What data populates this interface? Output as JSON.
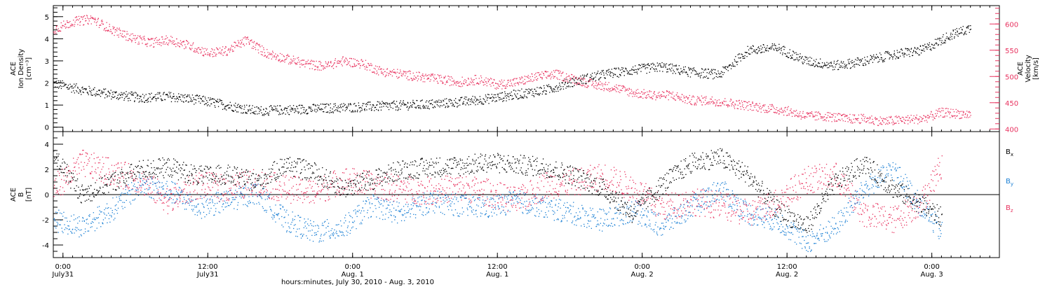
{
  "colors": {
    "density": "#000000",
    "velocity": "#e8325f",
    "bx": "#000000",
    "by": "#1a7fd4",
    "bz": "#e8325f",
    "axis": "#000000"
  },
  "chart_data": [
    {
      "type": "scatter",
      "panel": "top",
      "ylabel": [
        "ACE",
        "Ion Density",
        "[cm⁻³]"
      ],
      "ylim": [
        -0.2,
        5.5
      ],
      "yticks": [
        "0",
        "1",
        "2",
        "3",
        "4",
        "5"
      ],
      "y2label": [
        "ACE",
        "Velocity",
        "[km/s]"
      ],
      "y2lim": [
        395,
        635
      ],
      "y2ticks": [
        "400",
        "450",
        "500",
        "550",
        "600"
      ],
      "xlim_hours": [
        0,
        98
      ],
      "grid": false,
      "series": [
        {
          "key": "density",
          "axis": "left",
          "x": [
            0,
            3,
            6,
            9,
            12,
            15,
            18,
            21,
            24,
            27,
            30,
            33,
            36,
            39,
            42,
            45,
            48,
            51,
            54,
            57,
            60,
            63,
            66,
            69,
            72,
            75,
            78,
            81,
            84,
            87,
            90,
            93,
            95
          ],
          "y": [
            2.0,
            1.7,
            1.5,
            1.35,
            1.4,
            1.25,
            1.0,
            0.75,
            0.8,
            0.85,
            0.9,
            0.95,
            1.0,
            1.05,
            1.15,
            1.3,
            1.5,
            1.7,
            2.1,
            2.4,
            2.6,
            2.75,
            2.5,
            2.4,
            3.5,
            3.6,
            3.0,
            2.8,
            3.0,
            3.3,
            3.5,
            4.2,
            4.5
          ]
        },
        {
          "key": "velocity",
          "axis": "right",
          "x": [
            0,
            2,
            4,
            6,
            8,
            10,
            12,
            14,
            16,
            18,
            20,
            22,
            24,
            26,
            28,
            30,
            32,
            34,
            36,
            38,
            40,
            42,
            44,
            46,
            48,
            50,
            52,
            54,
            56,
            58,
            60,
            62,
            64,
            66,
            68,
            70,
            72,
            74,
            76,
            78,
            80,
            82,
            84,
            86,
            88,
            90,
            92,
            95
          ],
          "y": [
            590,
            605,
            610,
            590,
            575,
            565,
            570,
            560,
            545,
            550,
            570,
            545,
            535,
            525,
            520,
            530,
            525,
            510,
            505,
            500,
            495,
            490,
            495,
            485,
            490,
            500,
            505,
            495,
            485,
            480,
            470,
            465,
            465,
            455,
            455,
            450,
            445,
            440,
            435,
            425,
            425,
            420,
            420,
            415,
            418,
            420,
            432,
            428
          ]
        }
      ]
    },
    {
      "type": "scatter",
      "panel": "bottom",
      "ylabel": [
        "ACE",
        "B",
        "[nT]"
      ],
      "ylim": [
        -5,
        5
      ],
      "yticks": [
        "-4",
        "-2",
        "0",
        "2",
        "4"
      ],
      "legend": [
        "Bx",
        "By",
        "Bz"
      ],
      "legend_position": "right",
      "xlim_hours": [
        0,
        98
      ],
      "xticks": [
        {
          "hour": 1,
          "l1": "0:00",
          "l2": "July31"
        },
        {
          "hour": 16,
          "l1": "12:00",
          "l2": "July31"
        },
        {
          "hour": 31,
          "l1": "0:00",
          "l2": "Aug. 1"
        },
        {
          "hour": 46,
          "l1": "12:00",
          "l2": "Aug. 1"
        },
        {
          "hour": 61,
          "l1": "0:00",
          "l2": "Aug. 2"
        },
        {
          "hour": 76,
          "l1": "12:00",
          "l2": "Aug. 2"
        },
        {
          "hour": 91,
          "l1": "0:00",
          "l2": "Aug. 3"
        }
      ],
      "xlabel": "hours:minutes, July 30, 2010 - Aug.  3, 2010",
      "grid": false,
      "series": [
        {
          "key": "bx",
          "x": [
            0,
            3,
            6,
            9,
            12,
            15,
            18,
            21,
            24,
            27,
            30,
            33,
            36,
            39,
            42,
            45,
            48,
            51,
            54,
            57,
            60,
            63,
            66,
            69,
            72,
            75,
            78,
            81,
            84,
            87,
            90,
            92
          ],
          "y": [
            3.2,
            0.0,
            1.0,
            2.0,
            2.2,
            1.5,
            1.6,
            1.0,
            2.4,
            1.8,
            0.5,
            1.2,
            2.0,
            2.2,
            2.3,
            2.6,
            2.4,
            2.2,
            1.5,
            0.5,
            -1.5,
            0.8,
            2.5,
            3.0,
            1.5,
            -1.2,
            -2.5,
            1.0,
            2.5,
            0.5,
            -0.8,
            -1.8
          ]
        },
        {
          "key": "by",
          "x": [
            0,
            3,
            6,
            9,
            12,
            15,
            18,
            21,
            24,
            27,
            30,
            33,
            36,
            39,
            42,
            45,
            48,
            51,
            54,
            57,
            60,
            63,
            66,
            69,
            72,
            75,
            78,
            81,
            84,
            87,
            90,
            92
          ],
          "y": [
            -2.0,
            -2.5,
            -1.2,
            0.8,
            0.3,
            -1.0,
            -0.5,
            0.2,
            -2.0,
            -3.0,
            -2.6,
            -0.8,
            -1.5,
            -0.5,
            -0.8,
            -1.0,
            -0.5,
            -1.0,
            -1.5,
            -2.0,
            -1.2,
            -2.5,
            -1.0,
            0.5,
            -1.5,
            -2.0,
            -3.8,
            -2.5,
            0.5,
            2.0,
            -1.0,
            -3.0
          ]
        },
        {
          "key": "bz",
          "x": [
            0,
            3,
            6,
            9,
            12,
            15,
            18,
            21,
            24,
            27,
            30,
            33,
            36,
            39,
            42,
            45,
            48,
            51,
            54,
            57,
            60,
            63,
            66,
            69,
            72,
            75,
            78,
            81,
            84,
            87,
            90,
            92
          ],
          "y": [
            0.5,
            2.5,
            1.8,
            1.2,
            -0.5,
            0.8,
            0.5,
            1.0,
            0.5,
            0.2,
            1.2,
            0.8,
            0.5,
            0.3,
            0.6,
            0.2,
            -0.5,
            0.8,
            1.0,
            1.5,
            0.5,
            -1.0,
            -0.5,
            -0.8,
            -1.5,
            -0.5,
            1.2,
            1.5,
            -1.5,
            -2.0,
            -0.5,
            2.5
          ]
        }
      ]
    }
  ]
}
